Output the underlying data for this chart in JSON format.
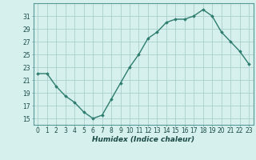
{
  "x": [
    0,
    1,
    2,
    3,
    4,
    5,
    6,
    7,
    8,
    9,
    10,
    11,
    12,
    13,
    14,
    15,
    16,
    17,
    18,
    19,
    20,
    21,
    22,
    23
  ],
  "y": [
    22,
    22,
    20,
    18.5,
    17.5,
    16,
    15,
    15.5,
    18,
    20.5,
    23,
    25,
    27.5,
    28.5,
    30,
    30.5,
    30.5,
    31,
    32,
    31,
    28.5,
    27,
    25.5,
    23.5
  ],
  "line_color": "#2d7d6e",
  "marker": "D",
  "marker_size": 1.8,
  "bg_color": "#d6f0ee",
  "grid_color": "#aacfcc",
  "xlabel": "Humidex (Indice chaleur)",
  "xlim": [
    -0.5,
    23.5
  ],
  "ylim": [
    14,
    33
  ],
  "yticks": [
    15,
    17,
    19,
    21,
    23,
    25,
    27,
    29,
    31
  ],
  "xticks": [
    0,
    1,
    2,
    3,
    4,
    5,
    6,
    7,
    8,
    9,
    10,
    11,
    12,
    13,
    14,
    15,
    16,
    17,
    18,
    19,
    20,
    21,
    22,
    23
  ],
  "xlabel_fontsize": 6.5,
  "tick_fontsize": 5.5,
  "line_width": 1.0,
  "spine_color": "#5a9a94"
}
